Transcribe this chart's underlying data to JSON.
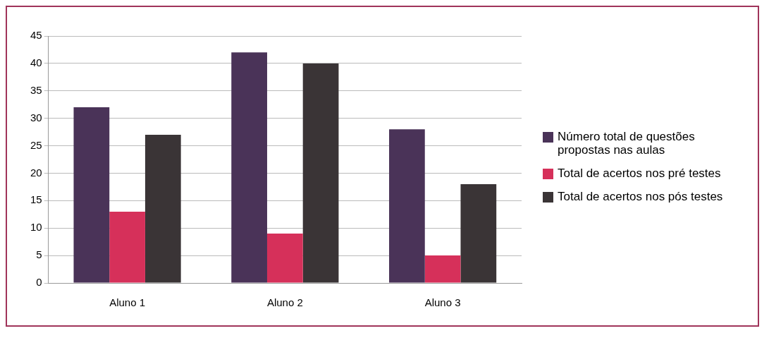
{
  "chart_data": {
    "type": "bar",
    "categories": [
      "Aluno 1",
      "Aluno 2",
      "Aluno 3"
    ],
    "series": [
      {
        "name": "Número total de questões propostas nas aulas",
        "color": "#4a3358",
        "values": [
          32,
          42,
          28
        ]
      },
      {
        "name": "Total de acertos nos pré testes",
        "color": "#d6305a",
        "values": [
          13,
          9,
          5
        ]
      },
      {
        "name": "Total de acertos nos pós testes",
        "color": "#3a3436",
        "values": [
          27,
          40,
          18
        ]
      }
    ],
    "ylim": [
      0,
      45
    ],
    "yticks": [
      0,
      5,
      10,
      15,
      20,
      25,
      30,
      35,
      40,
      45
    ],
    "grid": "y",
    "legend": "right"
  }
}
